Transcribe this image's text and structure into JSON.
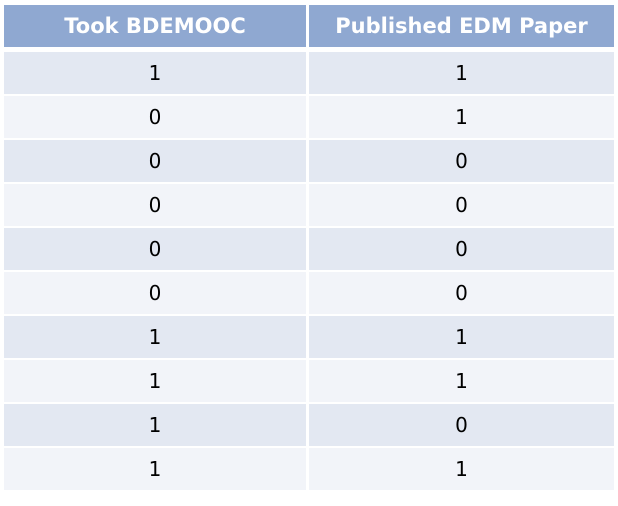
{
  "table": {
    "headers": [
      "Took BDEMOOC",
      "Published EDM Paper"
    ],
    "rows": [
      [
        "1",
        "1"
      ],
      [
        "0",
        "1"
      ],
      [
        "0",
        "0"
      ],
      [
        "0",
        "0"
      ],
      [
        "0",
        "0"
      ],
      [
        "0",
        "0"
      ],
      [
        "1",
        "1"
      ],
      [
        "1",
        "1"
      ],
      [
        "1",
        "0"
      ],
      [
        "1",
        "1"
      ]
    ]
  },
  "colors": {
    "header_bg": "#8fa8d1",
    "row_odd_bg": "#e3e8f2",
    "row_even_bg": "#f2f4f9"
  }
}
